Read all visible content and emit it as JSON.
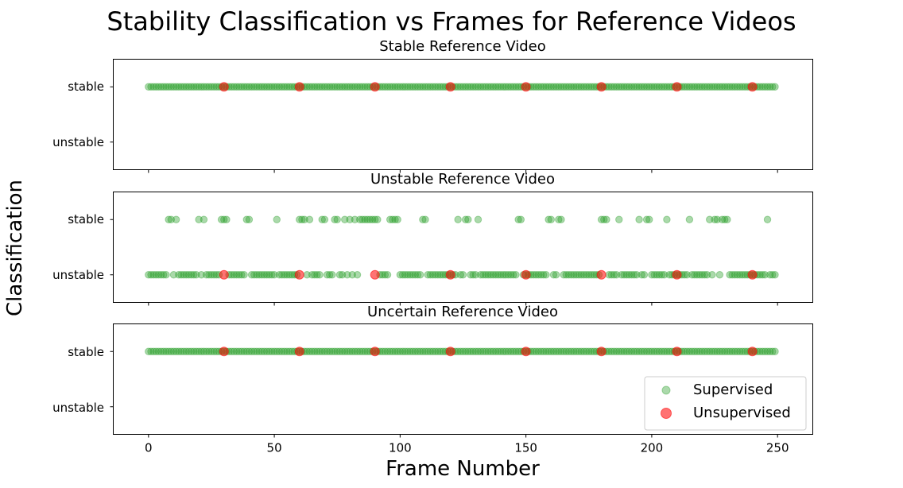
{
  "figure": {
    "title": "Stability Classification vs Frames for Reference Videos",
    "ylabel": "Classification",
    "xlabel": "Frame Number"
  },
  "chart_data": [
    {
      "type": "scatter",
      "title": "Stable Reference Video",
      "xlim": [
        -14,
        264
      ],
      "categories": [
        "stable",
        "unstable"
      ],
      "x_ticks": [
        0,
        50,
        100,
        150,
        200,
        250
      ],
      "series": [
        {
          "name": "Supervised",
          "color": "#2ca02c",
          "category": "stable",
          "x": "range:0-249"
        },
        {
          "name": "Unsupervised",
          "color": "#ff0000",
          "category": "stable",
          "x": [
            30,
            60,
            90,
            120,
            150,
            180,
            210,
            240
          ]
        }
      ]
    },
    {
      "type": "scatter",
      "title": "Unstable Reference Video",
      "xlim": [
        -14,
        264
      ],
      "categories": [
        "stable",
        "unstable"
      ],
      "x_ticks": [
        0,
        50,
        100,
        150,
        200,
        250
      ],
      "series": [
        {
          "name": "Supervised",
          "color": "#2ca02c",
          "category": "stable",
          "x": [
            8,
            9,
            11,
            20,
            22,
            29,
            30,
            31,
            39,
            40,
            51,
            60,
            61,
            62,
            64,
            69,
            70,
            74,
            75,
            78,
            80,
            82,
            84,
            85,
            86,
            87,
            88,
            89,
            90,
            91,
            96,
            97,
            98,
            99,
            109,
            110,
            123,
            126,
            127,
            131,
            147,
            148,
            159,
            160,
            163,
            164,
            180,
            181,
            182,
            187,
            195,
            198,
            199,
            206,
            215,
            223,
            225,
            226,
            228,
            229,
            230,
            246
          ]
        },
        {
          "name": "Supervised",
          "color": "#2ca02c",
          "category": "unstable",
          "x": "range:0-249 except stable"
        },
        {
          "name": "Unsupervised",
          "color": "#ff0000",
          "category": "unstable",
          "x": [
            30,
            60,
            90,
            120,
            150,
            180,
            210,
            240
          ]
        }
      ]
    },
    {
      "type": "scatter",
      "title": "Uncertain Reference Video",
      "xlim": [
        -14,
        264
      ],
      "categories": [
        "stable",
        "unstable"
      ],
      "x_ticks": [
        0,
        50,
        100,
        150,
        200,
        250
      ],
      "series": [
        {
          "name": "Supervised",
          "color": "#2ca02c",
          "category": "stable",
          "x": "range:0-249"
        },
        {
          "name": "Unsupervised",
          "color": "#ff0000",
          "category": "stable",
          "x": [
            30,
            60,
            90,
            120,
            150,
            180,
            210,
            240
          ]
        }
      ]
    }
  ],
  "legend": {
    "placement": "lower right",
    "entries": [
      "Supervised",
      "Unsupervised"
    ]
  }
}
